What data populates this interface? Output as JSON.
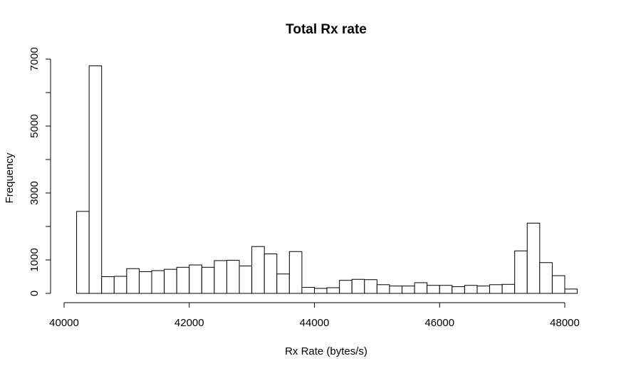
{
  "chart_data": {
    "type": "bar",
    "title": "Total Rx rate",
    "xlabel": "Rx Rate (bytes/s)",
    "ylabel": "Frequency",
    "xlim": [
      40000,
      48000
    ],
    "ylim": [
      0,
      7000
    ],
    "x_ticks": [
      40000,
      42000,
      44000,
      46000,
      48000
    ],
    "x_tick_labels": [
      "40000",
      "42000",
      "44000",
      "46000",
      "48000"
    ],
    "y_ticks": [
      0,
      1000,
      2000,
      3000,
      4000,
      5000,
      6000,
      7000
    ],
    "y_tick_labels": [
      "0",
      "1000",
      "",
      "3000",
      "",
      "5000",
      "",
      "7000"
    ],
    "grid": false,
    "legend": "none",
    "bin_width": 200,
    "bin_starts": [
      40200,
      40400,
      40600,
      40800,
      41000,
      41200,
      41400,
      41600,
      41800,
      42000,
      42200,
      42400,
      42600,
      42800,
      43000,
      43200,
      43400,
      43600,
      43800,
      44000,
      44200,
      44400,
      44600,
      44800,
      45000,
      45200,
      45400,
      45600,
      45800,
      46000,
      46200,
      46400,
      46600,
      46800,
      47000,
      47200,
      47400,
      47600,
      47800,
      48000
    ],
    "values": [
      2450,
      6800,
      500,
      510,
      740,
      650,
      680,
      720,
      780,
      850,
      780,
      980,
      990,
      820,
      1400,
      1180,
      580,
      1250,
      180,
      150,
      170,
      390,
      420,
      410,
      260,
      220,
      220,
      320,
      240,
      240,
      200,
      240,
      220,
      260,
      270,
      1270,
      2100,
      920,
      530,
      130
    ]
  }
}
